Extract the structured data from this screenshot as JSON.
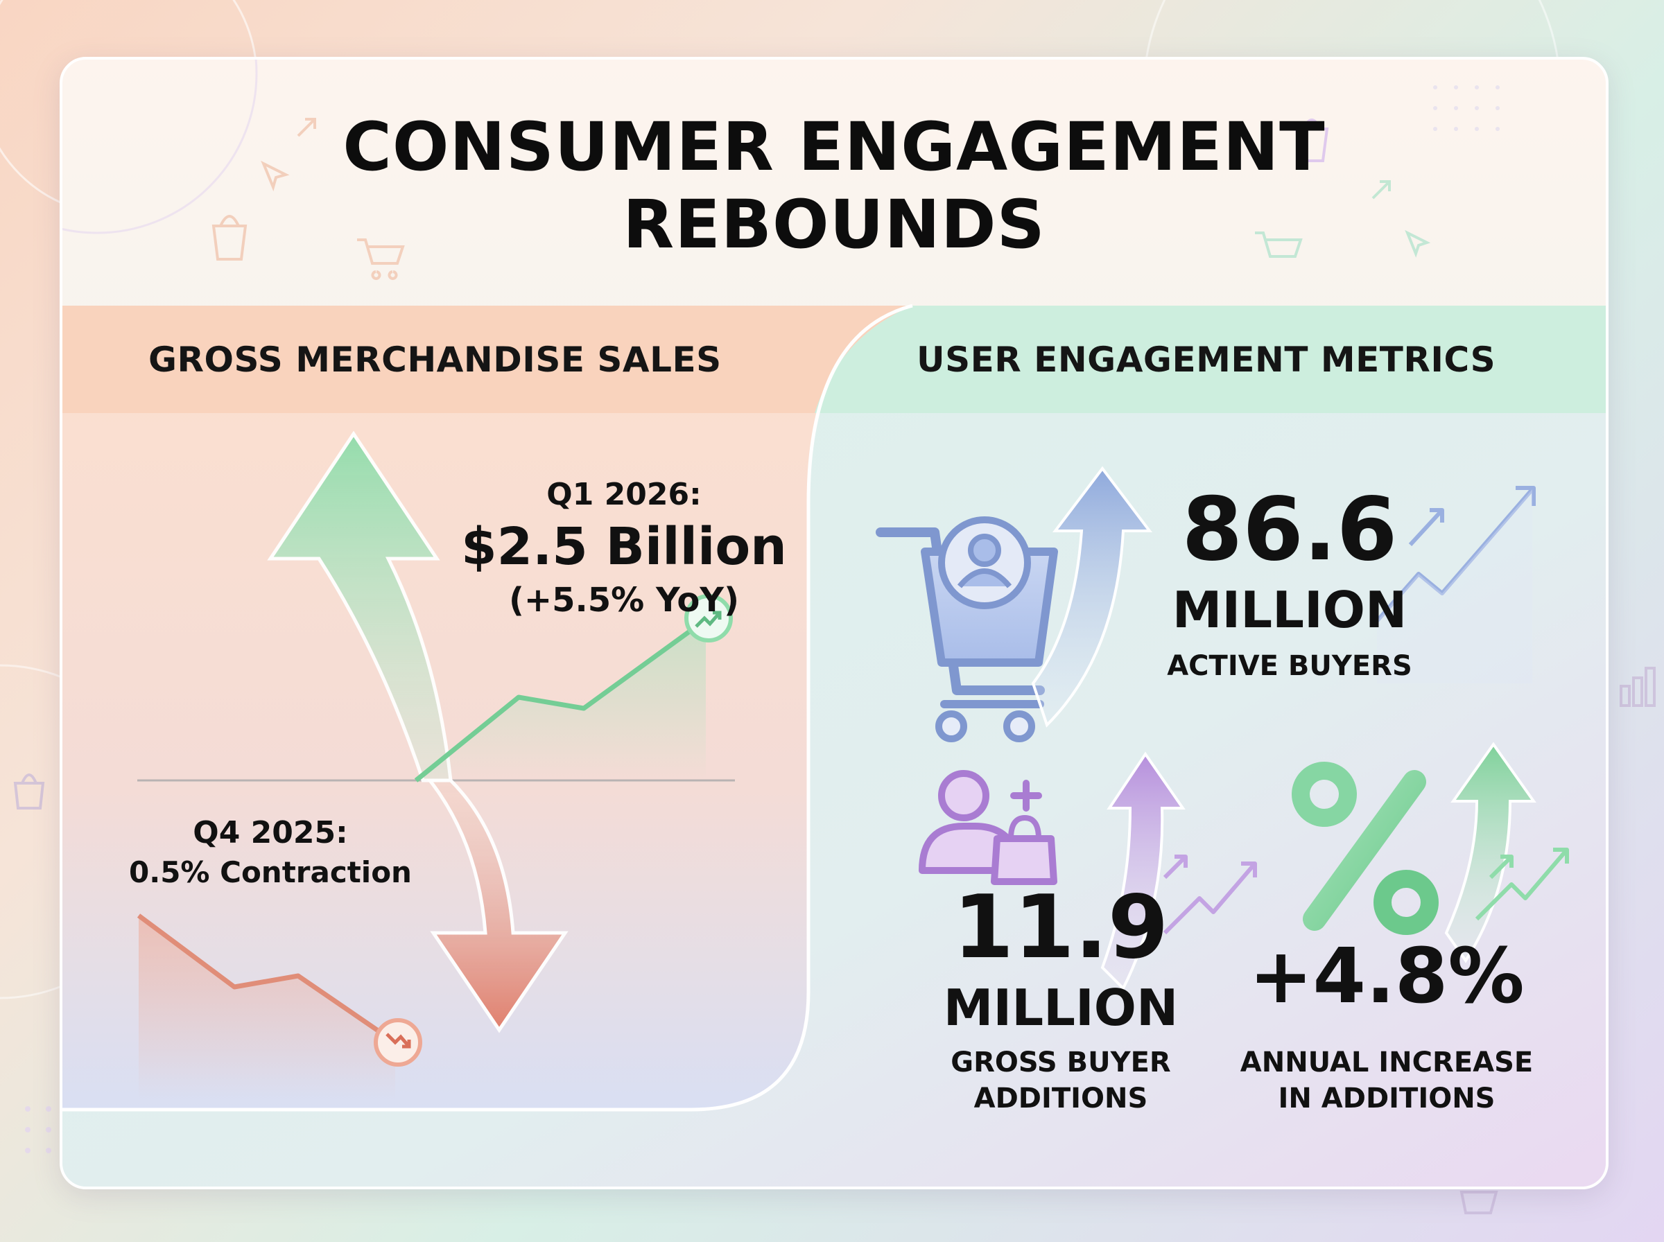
{
  "title": {
    "line1": "CONSUMER ENGAGEMENT",
    "line2": "REBOUNDS"
  },
  "gms": {
    "header": "GROSS MERCHANDISE SALES",
    "q1_label": "Q1 2026:",
    "q1_value": "$2.5 Billion",
    "q1_change": "(+5.5% YoY)",
    "q4_label": "Q4 2025:",
    "q4_value": "0.5% Contraction"
  },
  "engagement": {
    "header": "USER ENGAGEMENT METRICS",
    "active_buyers": {
      "value": "86.6",
      "unit": "MILLION",
      "label": "ACTIVE BUYERS"
    },
    "gross_additions": {
      "value": "11.9",
      "unit": "MILLION",
      "label_line1": "GROSS BUYER",
      "label_line2": "ADDITIONS"
    },
    "annual_increase": {
      "value": "+4.8%",
      "label_line1": "ANNUAL INCREASE",
      "label_line2": "IN ADDITIONS"
    }
  },
  "colors": {
    "green": "#8fdcaa",
    "red": "#e07a66",
    "blue": "#8fa9dc",
    "purple": "#b68fdc",
    "peach_band": "#f9d3bd",
    "mint_band": "#cdeede"
  },
  "icons": [
    "shopping-cart-user-icon",
    "user-add-bag-icon",
    "percent-icon",
    "trend-up-icon",
    "trend-down-icon"
  ]
}
